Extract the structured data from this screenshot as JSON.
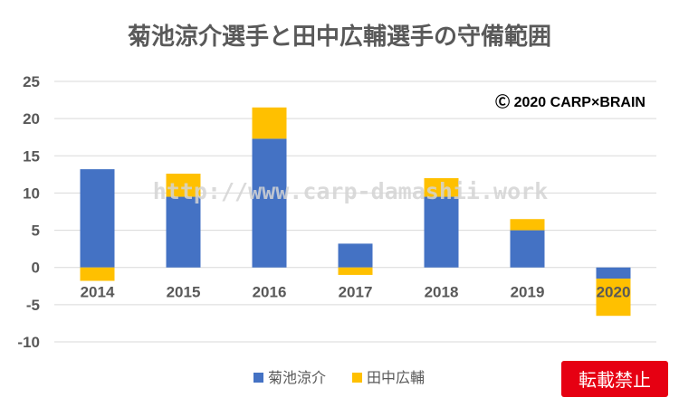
{
  "chart_data": {
    "type": "bar",
    "stacked": true,
    "title": "菊池涼介選手と田中広輔選手の守備範囲",
    "categories": [
      "2014",
      "2015",
      "2016",
      "2017",
      "2018",
      "2019",
      "2020"
    ],
    "series": [
      {
        "name": "菊池涼介",
        "color": "#4472C4",
        "values": [
          13.2,
          9.5,
          17.3,
          3.2,
          9.5,
          5.0,
          -1.5
        ]
      },
      {
        "name": "田中広輔",
        "color": "#FFC000",
        "values": [
          -1.8,
          3.1,
          4.2,
          -1.0,
          2.5,
          1.5,
          -5.0
        ]
      }
    ],
    "ylim": [
      -10,
      25
    ],
    "yticks": [
      -10,
      -5,
      0,
      5,
      10,
      15,
      20,
      25
    ],
    "grid": true,
    "legend": "bottom",
    "annotations": {
      "copyright": "Ⓒ 2020 CARP×BRAIN",
      "watermark": "http://www.carp-damashii.work"
    }
  },
  "badge": {
    "label": "転載禁止",
    "color": "#E60012"
  }
}
